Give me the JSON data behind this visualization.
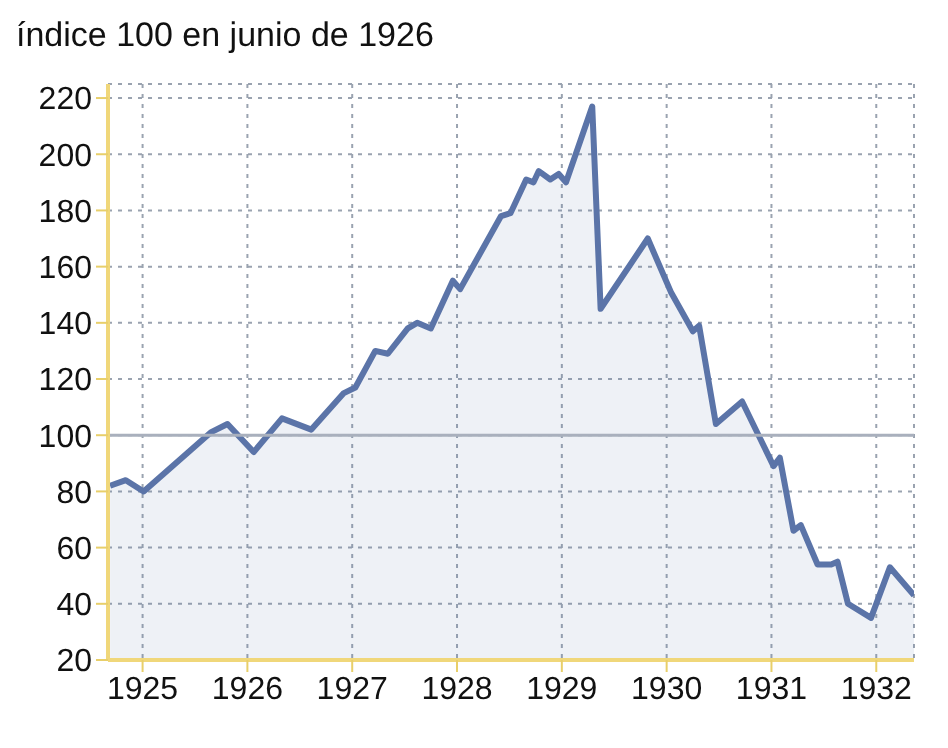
{
  "chart_data": {
    "type": "area",
    "title": "índice 100 en junio de 1926",
    "x": [
      1924.69,
      1924.84,
      1925.01,
      1925.65,
      1925.81,
      1926.06,
      1926.33,
      1926.61,
      1926.92,
      1927.03,
      1927.22,
      1927.34,
      1927.53,
      1927.62,
      1927.75,
      1927.96,
      1928.03,
      1928.42,
      1928.51,
      1928.66,
      1928.73,
      1928.78,
      1928.89,
      1928.97,
      1929.04,
      1929.29,
      1929.37,
      1929.82,
      1930.04,
      1930.25,
      1930.31,
      1930.47,
      1930.72,
      1931.02,
      1931.08,
      1931.21,
      1931.28,
      1931.44,
      1931.57,
      1931.63,
      1931.73,
      1931.95,
      1932.13,
      1932.36
    ],
    "series": [
      {
        "color": "#5b74a8",
        "values": [
          82,
          84,
          80,
          101,
          104,
          94,
          106,
          102,
          115,
          117,
          130,
          129,
          138,
          140,
          138,
          155,
          152,
          178,
          179,
          191,
          190,
          194,
          191,
          193,
          190,
          217,
          145,
          170,
          151,
          137,
          139,
          104,
          112,
          89,
          92,
          66,
          68,
          54,
          54,
          55,
          40,
          35,
          53,
          43
        ]
      }
    ],
    "xlim": [
      1924.67,
      1932.36
    ],
    "xticks": [
      1925,
      1926,
      1927,
      1928,
      1929,
      1930,
      1931,
      1932
    ],
    "ylim": [
      20,
      225
    ],
    "yticks": [
      20,
      40,
      60,
      80,
      100,
      120,
      140,
      160,
      180,
      200,
      220
    ],
    "grid": true,
    "line_style": "solid",
    "marker": "none",
    "ref_lines": [
      {
        "axis": "y",
        "value": 100,
        "color": "#a9b0bd"
      }
    ]
  }
}
